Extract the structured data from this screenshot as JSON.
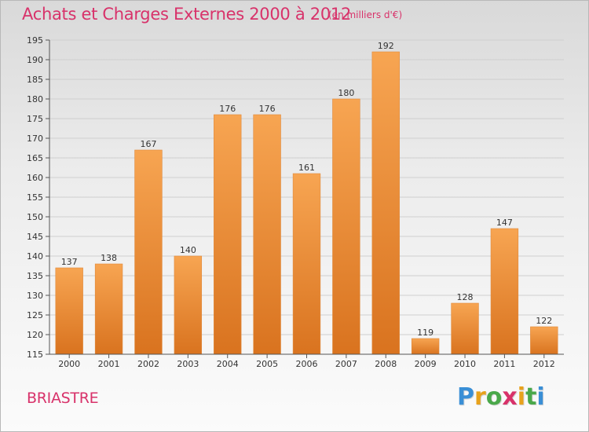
{
  "header": {
    "title": "Achats et Charges Externes 2000 à 2012",
    "unit": "(en milliers d'€)"
  },
  "footer": {
    "commune": "BRIASTRE",
    "logo": "Proxiti",
    "logo_colors": [
      "#3a8fd6",
      "#e8a21c",
      "#4aa84a",
      "#d8326a",
      "#e8a21c",
      "#4aa84a",
      "#3a8fd6"
    ]
  },
  "colors": {
    "bar_top": "#f7a552",
    "bar_bottom": "#d9731f",
    "grid": "#cfcfcf",
    "text": "#d8326a"
  },
  "chart_data": {
    "type": "bar",
    "title": "Achats et Charges Externes 2000 à 2012",
    "categories": [
      "2000",
      "2001",
      "2002",
      "2003",
      "2004",
      "2005",
      "2006",
      "2007",
      "2008",
      "2009",
      "2010",
      "2011",
      "2012"
    ],
    "values": [
      137,
      138,
      167,
      140,
      176,
      176,
      161,
      180,
      192,
      119,
      128,
      147,
      122
    ],
    "ylim": [
      115,
      195
    ],
    "yticks": [
      115,
      120,
      125,
      130,
      135,
      140,
      145,
      150,
      155,
      160,
      165,
      170,
      175,
      180,
      185,
      190,
      195
    ],
    "grid": true,
    "legend": "none"
  }
}
